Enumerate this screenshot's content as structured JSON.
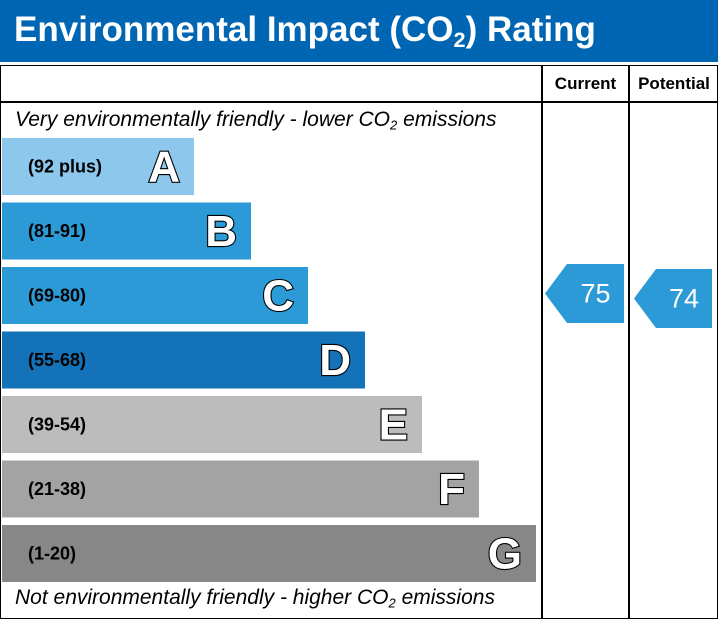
{
  "header": {
    "title_before": "Environmental Impact (CO",
    "title_sub": "2",
    "title_after": ") Rating",
    "background": "#0066b3"
  },
  "columns": {
    "current": "Current",
    "potential": "Potential"
  },
  "notes": {
    "top_before": "Very environmentally friendly - lower CO",
    "top_sub": "2",
    "top_after": " emissions",
    "bottom_before": "Not environmentally friendly - higher CO",
    "bottom_sub": "2",
    "bottom_after": " emissions"
  },
  "chart_data": {
    "type": "bar",
    "title": "Environmental Impact (CO2) Rating",
    "bands": [
      {
        "letter": "A",
        "range": "(92 plus)",
        "color": "#8dc7eb"
      },
      {
        "letter": "B",
        "range": "(81-91)",
        "color": "#2b9ad6"
      },
      {
        "letter": "C",
        "range": "(69-80)",
        "color": "#2b9ad6"
      },
      {
        "letter": "D",
        "range": "(55-68)",
        "color": "#1473b8"
      },
      {
        "letter": "E",
        "range": "(39-54)",
        "color": "#bcbcbc"
      },
      {
        "letter": "F",
        "range": "(21-38)",
        "color": "#a3a3a3"
      },
      {
        "letter": "G",
        "range": "(1-20)",
        "color": "#878787"
      }
    ],
    "current": {
      "label": "Current",
      "value": 75,
      "band": "C",
      "color": "#2b9ad6"
    },
    "potential": {
      "label": "Potential",
      "value": 74,
      "band": "C",
      "color": "#2b9ad6"
    }
  }
}
